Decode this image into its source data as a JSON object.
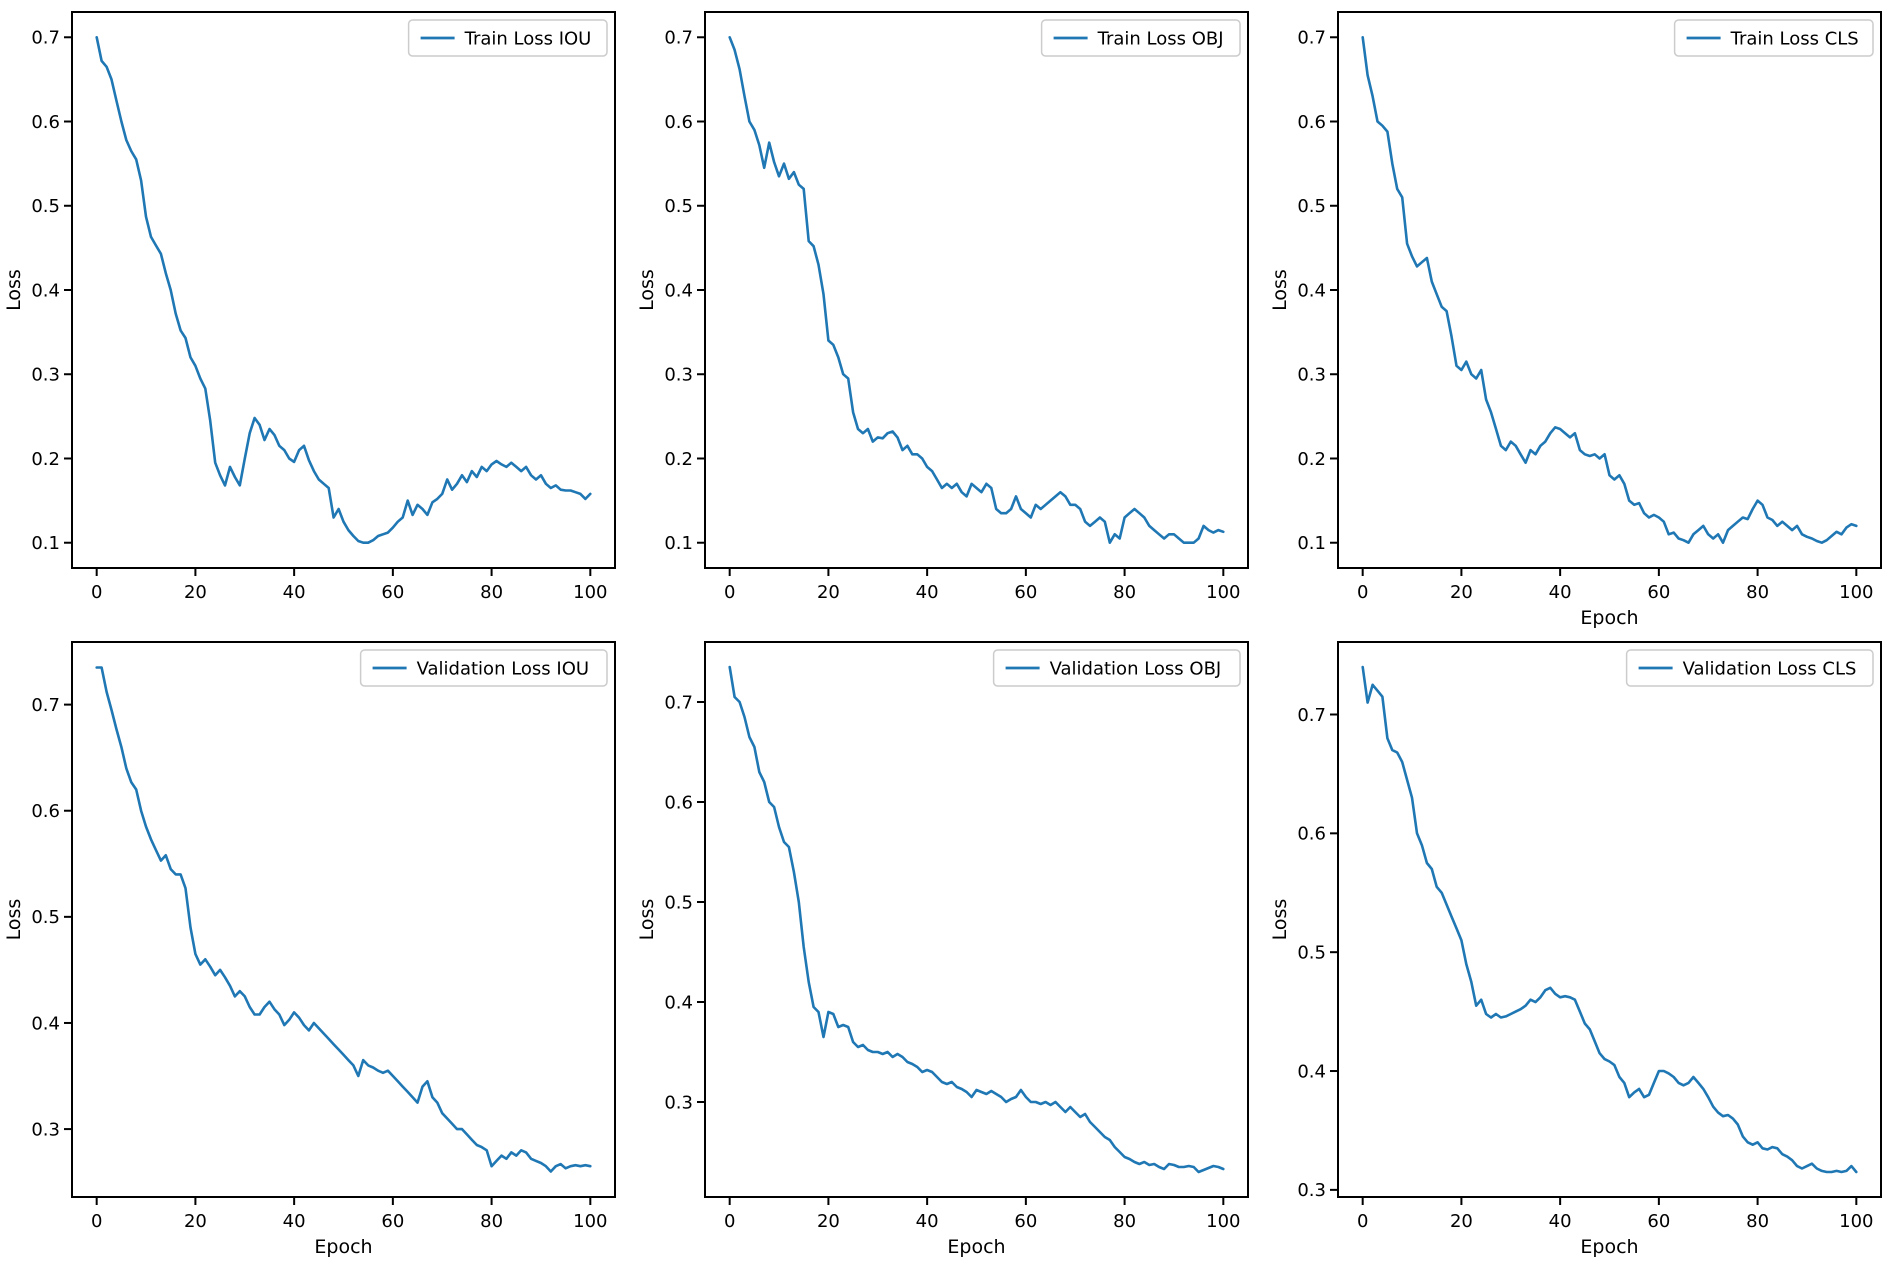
{
  "figure": {
    "background": "#ffffff",
    "line_color": "#1f77b4",
    "spine_color": "#000000",
    "legend_border_color": "#cccccc",
    "grid": "off",
    "legend_position": "upper right"
  },
  "chart_data": [
    {
      "type": "line",
      "legend": "Train Loss IOU",
      "xlabel": null,
      "ylabel": "Loss",
      "xlim": [
        -5,
        105
      ],
      "ylim": [
        0.07,
        0.73
      ],
      "xticks": [
        0,
        20,
        40,
        60,
        80,
        100
      ],
      "yticks": [
        0.1,
        0.2,
        0.3,
        0.4,
        0.5,
        0.6,
        0.7
      ],
      "x_start": 0,
      "x_end": 100,
      "values": [
        0.7,
        0.672,
        0.665,
        0.65,
        0.625,
        0.6,
        0.578,
        0.565,
        0.555,
        0.53,
        0.487,
        0.463,
        0.453,
        0.443,
        0.42,
        0.4,
        0.372,
        0.352,
        0.343,
        0.32,
        0.31,
        0.295,
        0.283,
        0.245,
        0.195,
        0.18,
        0.168,
        0.19,
        0.178,
        0.168,
        0.2,
        0.23,
        0.248,
        0.24,
        0.222,
        0.235,
        0.228,
        0.215,
        0.21,
        0.2,
        0.196,
        0.21,
        0.215,
        0.198,
        0.185,
        0.175,
        0.17,
        0.165,
        0.13,
        0.14,
        0.125,
        0.115,
        0.108,
        0.102,
        0.1,
        0.1,
        0.103,
        0.108,
        0.11,
        0.112,
        0.118,
        0.125,
        0.13,
        0.15,
        0.133,
        0.145,
        0.14,
        0.133,
        0.148,
        0.152,
        0.158,
        0.175,
        0.163,
        0.17,
        0.18,
        0.172,
        0.185,
        0.178,
        0.19,
        0.185,
        0.193,
        0.197,
        0.193,
        0.19,
        0.195,
        0.19,
        0.185,
        0.19,
        0.18,
        0.175,
        0.18,
        0.17,
        0.165,
        0.168,
        0.163,
        0.162,
        0.162,
        0.16,
        0.158,
        0.152,
        0.158
      ]
    },
    {
      "type": "line",
      "legend": "Train Loss OBJ",
      "xlabel": null,
      "ylabel": "Loss",
      "xlim": [
        -5,
        105
      ],
      "ylim": [
        0.07,
        0.73
      ],
      "xticks": [
        0,
        20,
        40,
        60,
        80,
        100
      ],
      "yticks": [
        0.1,
        0.2,
        0.3,
        0.4,
        0.5,
        0.6,
        0.7
      ],
      "x_start": 0,
      "x_end": 100,
      "values": [
        0.7,
        0.685,
        0.662,
        0.63,
        0.6,
        0.59,
        0.572,
        0.545,
        0.575,
        0.552,
        0.535,
        0.55,
        0.532,
        0.54,
        0.525,
        0.52,
        0.458,
        0.452,
        0.43,
        0.395,
        0.34,
        0.335,
        0.32,
        0.3,
        0.295,
        0.255,
        0.235,
        0.23,
        0.235,
        0.22,
        0.225,
        0.224,
        0.23,
        0.232,
        0.225,
        0.21,
        0.215,
        0.205,
        0.205,
        0.2,
        0.19,
        0.185,
        0.175,
        0.165,
        0.17,
        0.165,
        0.17,
        0.16,
        0.155,
        0.17,
        0.165,
        0.16,
        0.17,
        0.165,
        0.14,
        0.135,
        0.135,
        0.14,
        0.155,
        0.14,
        0.135,
        0.13,
        0.145,
        0.14,
        0.145,
        0.15,
        0.155,
        0.16,
        0.155,
        0.145,
        0.145,
        0.14,
        0.125,
        0.12,
        0.125,
        0.13,
        0.125,
        0.1,
        0.11,
        0.105,
        0.13,
        0.135,
        0.14,
        0.135,
        0.13,
        0.12,
        0.115,
        0.11,
        0.105,
        0.11,
        0.11,
        0.105,
        0.1,
        0.1,
        0.1,
        0.105,
        0.12,
        0.115,
        0.112,
        0.115,
        0.113
      ]
    },
    {
      "type": "line",
      "legend": "Train Loss CLS",
      "xlabel": "Epoch",
      "ylabel": "Loss",
      "xlim": [
        -5,
        105
      ],
      "ylim": [
        0.07,
        0.73
      ],
      "xticks": [
        0,
        20,
        40,
        60,
        80,
        100
      ],
      "yticks": [
        0.1,
        0.2,
        0.3,
        0.4,
        0.5,
        0.6,
        0.7
      ],
      "x_start": 0,
      "x_end": 100,
      "values": [
        0.7,
        0.655,
        0.63,
        0.6,
        0.595,
        0.588,
        0.55,
        0.52,
        0.51,
        0.455,
        0.44,
        0.428,
        0.433,
        0.438,
        0.41,
        0.395,
        0.38,
        0.375,
        0.345,
        0.31,
        0.305,
        0.315,
        0.3,
        0.295,
        0.305,
        0.27,
        0.255,
        0.235,
        0.215,
        0.21,
        0.22,
        0.215,
        0.205,
        0.195,
        0.21,
        0.205,
        0.215,
        0.22,
        0.23,
        0.237,
        0.235,
        0.23,
        0.225,
        0.23,
        0.21,
        0.205,
        0.203,
        0.205,
        0.2,
        0.205,
        0.18,
        0.175,
        0.18,
        0.17,
        0.15,
        0.145,
        0.147,
        0.135,
        0.13,
        0.133,
        0.13,
        0.125,
        0.11,
        0.112,
        0.105,
        0.103,
        0.1,
        0.11,
        0.115,
        0.12,
        0.11,
        0.105,
        0.11,
        0.1,
        0.115,
        0.12,
        0.125,
        0.13,
        0.128,
        0.14,
        0.15,
        0.145,
        0.13,
        0.127,
        0.12,
        0.125,
        0.12,
        0.115,
        0.12,
        0.11,
        0.107,
        0.105,
        0.102,
        0.1,
        0.103,
        0.108,
        0.113,
        0.11,
        0.118,
        0.122,
        0.12
      ]
    },
    {
      "type": "line",
      "legend": "Validation Loss IOU",
      "xlabel": "Epoch",
      "ylabel": "Loss",
      "xlim": [
        -5,
        105
      ],
      "ylim": [
        0.236,
        0.759
      ],
      "xticks": [
        0,
        20,
        40,
        60,
        80,
        100
      ],
      "yticks": [
        0.3,
        0.4,
        0.5,
        0.6,
        0.7
      ],
      "x_start": 0,
      "x_end": 100,
      "values": [
        0.735,
        0.735,
        0.712,
        0.695,
        0.677,
        0.66,
        0.64,
        0.627,
        0.62,
        0.6,
        0.585,
        0.573,
        0.563,
        0.553,
        0.558,
        0.545,
        0.54,
        0.54,
        0.527,
        0.49,
        0.465,
        0.455,
        0.46,
        0.453,
        0.445,
        0.45,
        0.443,
        0.435,
        0.425,
        0.43,
        0.425,
        0.415,
        0.408,
        0.408,
        0.415,
        0.42,
        0.413,
        0.408,
        0.398,
        0.403,
        0.41,
        0.405,
        0.398,
        0.393,
        0.4,
        0.395,
        0.39,
        0.385,
        0.38,
        0.375,
        0.37,
        0.365,
        0.36,
        0.35,
        0.365,
        0.36,
        0.358,
        0.355,
        0.353,
        0.355,
        0.35,
        0.345,
        0.34,
        0.335,
        0.33,
        0.325,
        0.34,
        0.345,
        0.33,
        0.325,
        0.315,
        0.31,
        0.305,
        0.3,
        0.3,
        0.295,
        0.29,
        0.285,
        0.283,
        0.28,
        0.265,
        0.27,
        0.275,
        0.272,
        0.278,
        0.275,
        0.28,
        0.278,
        0.272,
        0.27,
        0.268,
        0.265,
        0.26,
        0.265,
        0.267,
        0.263,
        0.265,
        0.266,
        0.265,
        0.266,
        0.265
      ]
    },
    {
      "type": "line",
      "legend": "Validation Loss OBJ",
      "xlabel": "Epoch",
      "ylabel": "Loss",
      "xlim": [
        -5,
        105
      ],
      "ylim": [
        0.205,
        0.76
      ],
      "xticks": [
        0,
        20,
        40,
        60,
        80,
        100
      ],
      "yticks": [
        0.3,
        0.4,
        0.5,
        0.6,
        0.7
      ],
      "x_start": 0,
      "x_end": 100,
      "values": [
        0.735,
        0.705,
        0.7,
        0.685,
        0.665,
        0.655,
        0.63,
        0.62,
        0.6,
        0.595,
        0.575,
        0.56,
        0.555,
        0.53,
        0.5,
        0.455,
        0.42,
        0.395,
        0.39,
        0.365,
        0.39,
        0.388,
        0.375,
        0.377,
        0.375,
        0.36,
        0.355,
        0.357,
        0.352,
        0.35,
        0.35,
        0.348,
        0.35,
        0.345,
        0.348,
        0.345,
        0.34,
        0.338,
        0.335,
        0.33,
        0.332,
        0.33,
        0.325,
        0.32,
        0.318,
        0.32,
        0.315,
        0.313,
        0.31,
        0.305,
        0.312,
        0.31,
        0.308,
        0.311,
        0.308,
        0.305,
        0.3,
        0.303,
        0.305,
        0.312,
        0.305,
        0.3,
        0.3,
        0.298,
        0.3,
        0.297,
        0.3,
        0.295,
        0.29,
        0.295,
        0.29,
        0.285,
        0.288,
        0.28,
        0.275,
        0.27,
        0.265,
        0.262,
        0.255,
        0.25,
        0.245,
        0.243,
        0.24,
        0.238,
        0.24,
        0.237,
        0.238,
        0.235,
        0.233,
        0.238,
        0.237,
        0.235,
        0.235,
        0.236,
        0.235,
        0.23,
        0.232,
        0.234,
        0.236,
        0.235,
        0.233
      ]
    },
    {
      "type": "line",
      "legend": "Validation Loss CLS",
      "xlabel": "Epoch",
      "ylabel": "Loss",
      "xlim": [
        -5,
        105
      ],
      "ylim": [
        0.294,
        0.761
      ],
      "xticks": [
        0,
        20,
        40,
        60,
        80,
        100
      ],
      "yticks": [
        0.3,
        0.4,
        0.5,
        0.6,
        0.7
      ],
      "x_start": 0,
      "x_end": 100,
      "values": [
        0.74,
        0.71,
        0.725,
        0.72,
        0.715,
        0.68,
        0.67,
        0.668,
        0.66,
        0.645,
        0.63,
        0.6,
        0.59,
        0.575,
        0.57,
        0.555,
        0.55,
        0.54,
        0.53,
        0.52,
        0.51,
        0.49,
        0.475,
        0.455,
        0.46,
        0.448,
        0.445,
        0.448,
        0.445,
        0.446,
        0.448,
        0.45,
        0.452,
        0.455,
        0.46,
        0.458,
        0.462,
        0.468,
        0.47,
        0.465,
        0.462,
        0.463,
        0.462,
        0.46,
        0.45,
        0.44,
        0.435,
        0.425,
        0.415,
        0.41,
        0.408,
        0.405,
        0.395,
        0.39,
        0.378,
        0.382,
        0.385,
        0.378,
        0.38,
        0.39,
        0.4,
        0.4,
        0.398,
        0.395,
        0.39,
        0.388,
        0.39,
        0.395,
        0.39,
        0.385,
        0.378,
        0.37,
        0.365,
        0.362,
        0.363,
        0.36,
        0.355,
        0.345,
        0.34,
        0.338,
        0.34,
        0.335,
        0.334,
        0.336,
        0.335,
        0.33,
        0.328,
        0.325,
        0.32,
        0.318,
        0.32,
        0.322,
        0.318,
        0.316,
        0.315,
        0.315,
        0.316,
        0.315,
        0.316,
        0.32,
        0.315
      ]
    }
  ]
}
